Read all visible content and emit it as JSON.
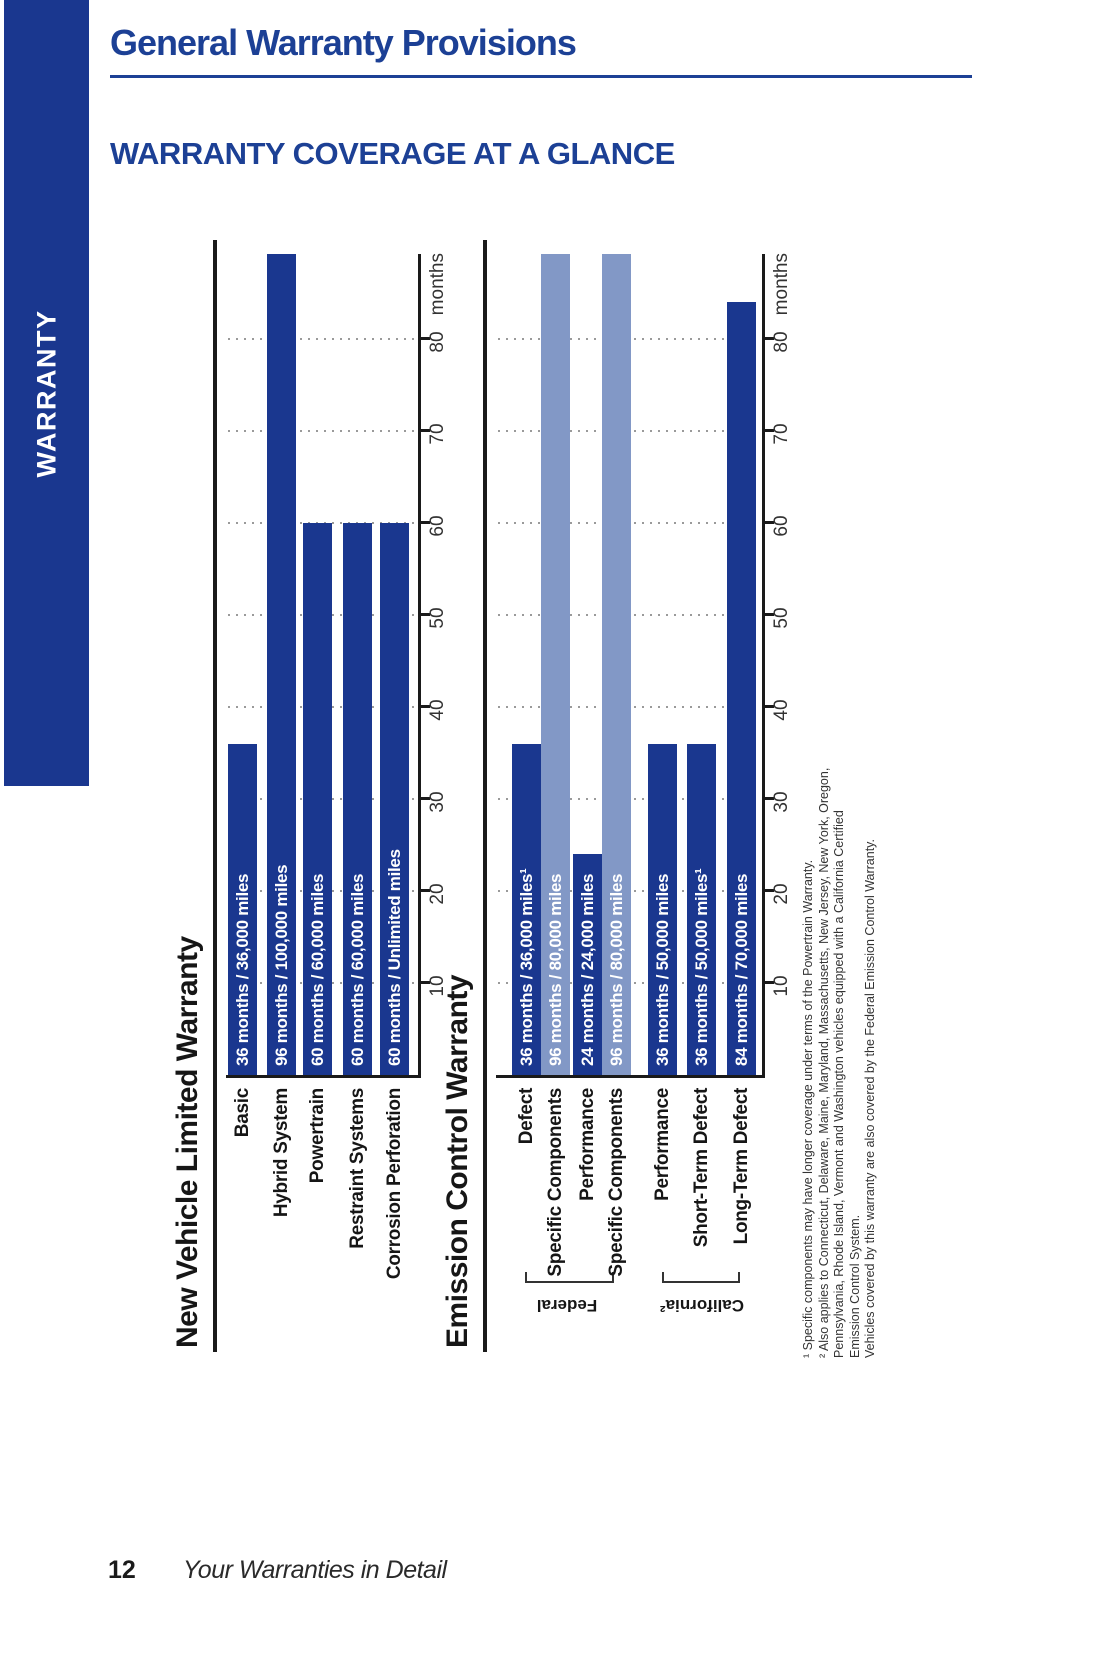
{
  "page": {
    "sidebar_label": "WARRANTY",
    "heading": "General Warranty Provisions",
    "subheading": "WARRANTY COVERAGE AT A GLANCE",
    "footer": {
      "page_number": "12",
      "text": "Your Warranties in Detail"
    }
  },
  "colors": {
    "navy": "#1a378f",
    "light_blue": "#8298c6",
    "heading_blue": "#1c4095",
    "axis_ink": "#1a1a1a",
    "grid_gray": "#9a9a9a"
  },
  "chart_data": [
    {
      "type": "bar",
      "title": "New Vehicle Limited Warranty",
      "unit_label": "months",
      "axis_ticks": [
        10,
        20,
        30,
        40,
        50,
        60,
        70,
        80
      ],
      "axis_visible_max_months": 89.2,
      "categories": [
        "Basic",
        "Hybrid System",
        "Powertrain",
        "Restraint Systems",
        "Corrosion Perforation"
      ],
      "values_months": [
        36,
        96,
        60,
        60,
        60
      ],
      "bar_labels": [
        "36 months / 36,000 miles",
        "96 months / 100,000 miles",
        "60 months / 60,000 miles",
        "60 months / 60,000 miles",
        "60 months / Unlimited miles"
      ],
      "bar_styles": [
        "navy",
        "navy",
        "navy",
        "navy",
        "navy"
      ]
    },
    {
      "type": "bar",
      "title": "Emission Control Warranty",
      "unit_label": "months",
      "axis_ticks": [
        10,
        20,
        30,
        40,
        50,
        60,
        70,
        80
      ],
      "axis_visible_max_months": 89.2,
      "categories": [
        "Defect",
        "Specific Components",
        "Performance",
        "Specific Components",
        "Performance",
        "Short-Term Defect",
        "Long-Term Defect"
      ],
      "values_months": [
        36,
        96,
        24,
        96,
        36,
        36,
        84
      ],
      "bar_labels": [
        "36 months / 36,000 miles¹",
        "96 months / 80,000 miles",
        "24 months / 24,000 miles",
        "96 months / 80,000 miles",
        "36 months / 50,000 miles",
        "36 months / 50,000 miles¹",
        "84 months / 70,000 miles"
      ],
      "bar_styles": [
        "navy",
        "light",
        "navy",
        "light",
        "navy",
        "navy",
        "navy"
      ],
      "groups": [
        {
          "label": "Federal",
          "from": 0,
          "to": 3
        },
        {
          "label": "California²",
          "from": 4,
          "to": 6
        }
      ]
    }
  ],
  "footnotes": {
    "lines": [
      "¹ Specific components may have longer coverage under terms of the Powertrain Warranty.",
      "² Also applies to Connecticut, Delaware, Maine, Maryland, Massachusetts, New Jersey, New York, Oregon,",
      "Pennsylvania, Rhode Island, Vermont and Washington vehicles equipped with a California Certified",
      "Emission Control System.",
      "Vehicles covered by this warranty are also covered by the Federal Emission Control Warranty."
    ]
  }
}
